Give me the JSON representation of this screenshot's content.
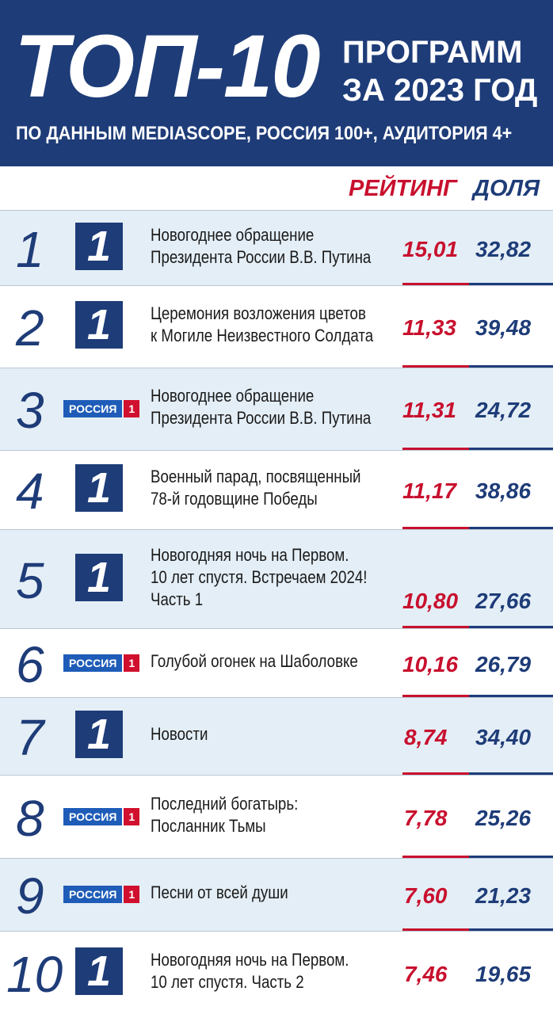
{
  "header": {
    "title": "ТОП-10",
    "subtitle": [
      "ПРОГРАММ",
      "ЗА 2023 ГОД"
    ],
    "source": "ПО ДАННЫМ MEDIASCOPE, РОССИЯ 100+, АУДИТОРИЯ 4+"
  },
  "table": {
    "columns": [
      "РЕЙТИНГ",
      "ДОЛЯ"
    ],
    "rows": [
      {
        "rank": 1,
        "logo": [
          "1"
        ],
        "program": [
          "Новогоднее обращение",
          "Президента России В.В. Путина"
        ],
        "rating": "15,01",
        "share": "32,82"
      },
      {
        "rank": 2,
        "logo": [
          "1"
        ],
        "program": [
          "Церемония возложения цветов",
          "к Могиле Неизвестного Солдата"
        ],
        "rating": "11,33",
        "share": "39,48"
      },
      {
        "rank": 3,
        "logo": [
          "РОССИЯ",
          "1"
        ],
        "program": [
          "Новогоднее обращение",
          "Президента России В.В. Путина"
        ],
        "rating": "11,31",
        "share": "24,72"
      },
      {
        "rank": 4,
        "logo": [
          "1"
        ],
        "program": [
          "Военный парад, посвященный",
          "78-й годовщине Победы"
        ],
        "rating": "11,17",
        "share": "38,86"
      },
      {
        "rank": 5,
        "logo": [
          "1"
        ],
        "program": [
          "Новогодняя ночь на Первом.",
          "10 лет спустя. Встречаем 2024!",
          "Часть 1"
        ],
        "rating": "10,80",
        "share": "27,66"
      },
      {
        "rank": 6,
        "logo": [
          "РОССИЯ",
          "1"
        ],
        "program": [
          "Голубой огонек на Шаболовке"
        ],
        "rating": "10,16",
        "share": "26,79"
      },
      {
        "rank": 7,
        "logo": [
          "1"
        ],
        "program": [
          "Новости"
        ],
        "rating": "8,74",
        "share": "34,40"
      },
      {
        "rank": 8,
        "logo": [
          "РОССИЯ",
          "1"
        ],
        "program": [
          "Последний богатырь:",
          "Посланник Тьмы"
        ],
        "rating": "7,78",
        "share": "25,26"
      },
      {
        "rank": 9,
        "logo": [
          "РОССИЯ",
          "1"
        ],
        "program": [
          "Песни от всей души"
        ],
        "rating": "7,60",
        "share": "21,23"
      },
      {
        "rank": 10,
        "logo": [
          "1"
        ],
        "program": [
          "Новогодняя ночь на Первом.",
          "10 лет спустя. Часть 2"
        ],
        "rating": "7,46",
        "share": "19,65"
      }
    ]
  }
}
